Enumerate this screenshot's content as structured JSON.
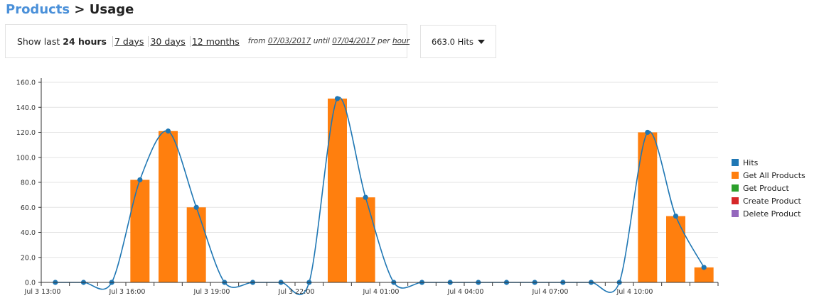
{
  "breadcrumb": {
    "parent": "Products",
    "separator": ">",
    "current": "Usage"
  },
  "range": {
    "label": "Show last",
    "selected": "24 hours",
    "options": [
      "7 days",
      "30 days",
      "12 months"
    ],
    "from_label": "from",
    "from_date": "07/03/2017",
    "until_label": "until",
    "until_date": "07/04/2017",
    "per_label": "per",
    "per_unit": "hour"
  },
  "hits_dropdown": {
    "label": "663.0 Hits"
  },
  "chart_data": {
    "type": "bar",
    "title": "",
    "xlabel": "",
    "ylabel": "",
    "ylim": [
      0,
      160
    ],
    "yticks": [
      "0.0",
      "20.0",
      "40.0",
      "60.0",
      "80.0",
      "100.0",
      "120.0",
      "140.0",
      "160.0"
    ],
    "x": [
      "Jul 3 13:00",
      "Jul 3 14:00",
      "Jul 3 15:00",
      "Jul 3 16:00",
      "Jul 3 17:00",
      "Jul 3 18:00",
      "Jul 3 19:00",
      "Jul 3 20:00",
      "Jul 3 21:00",
      "Jul 3 22:00",
      "Jul 3 23:00",
      "Jul 4 00:00",
      "Jul 4 01:00",
      "Jul 4 02:00",
      "Jul 4 03:00",
      "Jul 4 04:00",
      "Jul 4 05:00",
      "Jul 4 06:00",
      "Jul 4 07:00",
      "Jul 4 08:00",
      "Jul 4 09:00",
      "Jul 4 10:00",
      "Jul 4 11:00",
      "Jul 4 12:00"
    ],
    "xtick_labels": [
      "Jul 3 13:00",
      "Jul 3 16:00",
      "Jul 3 19:00",
      "Jul 3 22:00",
      "Jul 4 01:00",
      "Jul 4 04:00",
      "Jul 4 07:00",
      "Jul 4 10:00"
    ],
    "grid": true,
    "legend_position": "right",
    "series": [
      {
        "name": "Hits",
        "kind": "line",
        "color": "#1f77b4",
        "values": [
          0,
          0,
          0,
          82,
          121,
          60,
          0,
          0,
          0,
          0,
          147,
          68,
          0,
          0,
          0,
          0,
          0,
          0,
          0,
          0,
          0,
          120,
          53,
          12
        ]
      },
      {
        "name": "Get All Products",
        "kind": "bar",
        "color": "#ff7f0e",
        "values": [
          0,
          0,
          0,
          82,
          121,
          60,
          0,
          0,
          0,
          0,
          147,
          68,
          0,
          0,
          0,
          0,
          0,
          0,
          0,
          0,
          0,
          120,
          53,
          12
        ]
      },
      {
        "name": "Get Product",
        "kind": "bar",
        "color": "#2ca02c",
        "values": [
          0,
          0,
          0,
          0,
          0,
          0,
          0,
          0,
          0,
          0,
          0,
          0,
          0,
          0,
          0,
          0,
          0,
          0,
          0,
          0,
          0,
          0,
          0,
          0
        ]
      },
      {
        "name": "Create Product",
        "kind": "bar",
        "color": "#d62728",
        "values": [
          0,
          0,
          0,
          0,
          0,
          0,
          0,
          0,
          0,
          0,
          0,
          0,
          0,
          0,
          0,
          0,
          0,
          0,
          0,
          0,
          0,
          0,
          0,
          0
        ]
      },
      {
        "name": "Delete Product",
        "kind": "bar",
        "color": "#9467bd",
        "values": [
          0,
          0,
          0,
          0,
          0,
          0,
          0,
          0,
          0,
          0,
          0,
          0,
          0,
          0,
          0,
          0,
          0,
          0,
          0,
          0,
          0,
          0,
          0,
          0
        ]
      }
    ]
  }
}
